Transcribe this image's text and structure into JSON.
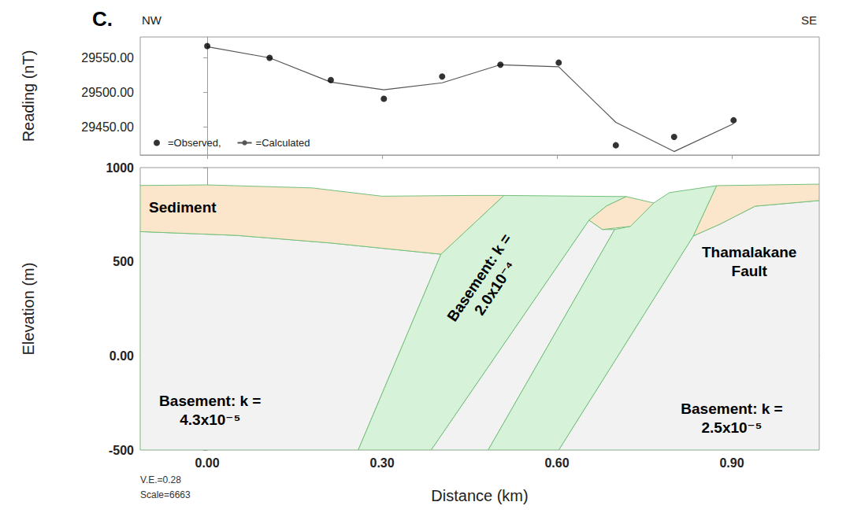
{
  "chart_data": [
    {
      "type": "line",
      "title": "C.",
      "annotations": [
        "NW",
        "SE"
      ],
      "y_label": "Reading (nT)",
      "x": [
        0.0,
        0.107,
        0.212,
        0.303,
        0.403,
        0.503,
        0.603,
        0.701,
        0.801,
        0.903
      ],
      "series": [
        {
          "name": "=Observed,",
          "type": "scatter",
          "color": "#000000",
          "marker": "circle",
          "values": [
            29567,
            29550,
            29518,
            29491,
            29523,
            29540,
            29543,
            29424,
            29436,
            29460
          ]
        },
        {
          "name": "=Calculated",
          "type": "line",
          "color": "#555555",
          "line_style": "solid",
          "values": [
            29566,
            29550,
            29515,
            29504,
            29514,
            29540,
            29537,
            29457,
            29415,
            29455
          ]
        }
      ],
      "xlim": [
        -0.115,
        1.05
      ],
      "xticks": [
        {
          "value": 0,
          "label": "0.00"
        },
        {
          "value": 0.3,
          "label": "0.30"
        },
        {
          "value": 0.6,
          "label": "0.60"
        },
        {
          "value": 0.9,
          "label": "0.90"
        }
      ],
      "ylim": [
        29410,
        29580
      ],
      "yticks": [
        {
          "value": 29450,
          "label": "29450.00"
        },
        {
          "value": 29500,
          "label": "29500.00"
        },
        {
          "value": 29550,
          "label": "29550.00"
        }
      ],
      "grid": false,
      "legend": "lower left",
      "tick_labels": "y"
    },
    {
      "type": "cross_section",
      "x_label": "Distance (km)",
      "y_label": "Elevation (m)",
      "annotations": [
        "Thamalakane Fault",
        "V.E.=0.28",
        "Scale=6663"
      ],
      "bodies": [
        {
          "label": "Basement: k = 4.3x10⁻⁵",
          "color": "#f2f2f2",
          "polygon": {
            "x": [
              -0.115,
              0.259,
              0.401,
              0.21,
              0.05,
              -0.115
            ],
            "y": [
              -500,
              -500,
              540,
              600,
              640,
              660
            ]
          }
        },
        {
          "color": "#f2f2f2",
          "polygon": {
            "x": [
              0.384,
              0.482,
              0.699,
              0.678,
              0.655
            ],
            "y": [
              -500,
              -500,
              671,
              671,
              721
            ]
          }
        },
        {
          "label": "Basement: k = 2.5x10⁻⁵",
          "color": "#f2f2f2",
          "polygon": {
            "x": [
              0.603,
              1.05,
              1.05,
              0.94,
              0.88,
              0.834
            ],
            "y": [
              -500,
              -500,
              825,
              795,
              700,
              637
            ]
          }
        },
        {
          "label": "Basement: k = 2.0x10⁻⁴",
          "color": "#d6f3da",
          "polygon": {
            "x": [
              0.259,
              0.384,
              0.655,
              0.685,
              0.719,
              0.509,
              0.401
            ],
            "y": [
              -500,
              -500,
              721,
              796,
              846,
              852,
              540
            ]
          }
        },
        {
          "color": "#d6f3da",
          "polygon": {
            "x": [
              0.482,
              0.603,
              0.834,
              0.874,
              0.793,
              0.766,
              0.726,
              0.699
            ],
            "y": [
              -500,
              -500,
              637,
              904,
              867,
              812,
              688,
              671
            ]
          }
        },
        {
          "label": "Sediment",
          "color": "#fbe6cc",
          "polygon": {
            "x": [
              -0.115,
              0.0,
              0.18,
              0.3,
              0.45,
              0.509,
              0.401,
              0.21,
              0.05,
              -0.115
            ],
            "y": [
              905,
              908,
              892,
              848,
              852,
              852,
              540,
              600,
              640,
              660
            ]
          }
        },
        {
          "color": "#fbe6cc",
          "polygon": {
            "x": [
              0.685,
              0.655,
              0.678,
              0.726,
              0.766,
              0.719
            ],
            "y": [
              796,
              721,
              671,
              688,
              812,
              846
            ]
          }
        },
        {
          "color": "#fbe6cc",
          "polygon": {
            "x": [
              0.874,
              1.05,
              1.05,
              0.94,
              0.88,
              0.834
            ],
            "y": [
              904,
              912,
              825,
              795,
              700,
              637
            ]
          }
        }
      ],
      "xlim": [
        -0.115,
        1.05
      ],
      "xticks": [
        {
          "value": 0,
          "label": "0.00"
        },
        {
          "value": 0.3,
          "label": "0.30"
        },
        {
          "value": 0.6,
          "label": "0.60"
        },
        {
          "value": 0.9,
          "label": "0.90"
        }
      ],
      "ylim": [
        -500,
        1000
      ],
      "yticks": [
        -500,
        {
          "value": 0,
          "label": "0.00"
        },
        500,
        1000
      ],
      "grid": false
    }
  ]
}
